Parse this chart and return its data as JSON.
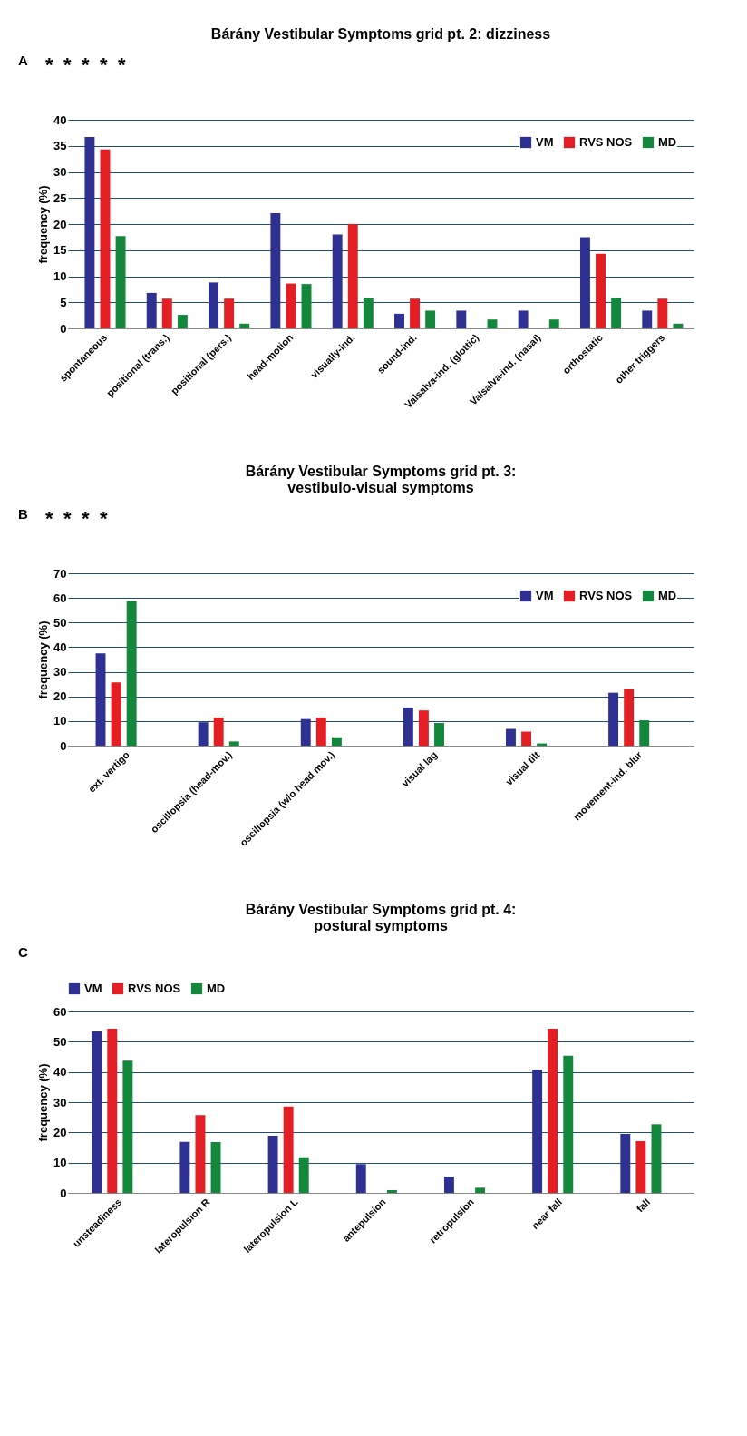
{
  "chart_data": [
    {
      "type": "bar",
      "title": "Bárány Vestibular Symptoms grid pt. 2: dizziness",
      "ylabel": "frequency (%)",
      "categories": [
        "spontaneous",
        "positional (trans.)",
        "positional (pers.)",
        "head-motion",
        "visually-ind.",
        "sound-ind.",
        "Valsalva-ind. (glottic)",
        "Valsalva-ind. (nasal)",
        "orthostatic",
        "other triggers"
      ],
      "series": [
        {
          "name": "VM",
          "color": "#2e3192",
          "values": [
            36.7,
            6.8,
            8.8,
            22.1,
            18.0,
            2.8,
            3.4,
            3.4,
            17.5,
            3.4
          ]
        },
        {
          "name": "RVS NOS",
          "color": "#e31e24",
          "values": [
            34.3,
            5.7,
            5.7,
            8.6,
            20.0,
            5.7,
            0,
            0,
            14.3,
            5.7
          ]
        },
        {
          "name": "MD",
          "color": "#13873c",
          "values": [
            17.7,
            2.6,
            0.9,
            8.5,
            5.9,
            3.4,
            1.7,
            1.7,
            5.9,
            0.9
          ]
        }
      ],
      "ylim": [
        0,
        40
      ],
      "yticks": [
        0,
        5,
        10,
        15,
        20,
        25,
        30,
        35,
        40
      ],
      "grid": "y",
      "legend": "top right",
      "annotations": [
        "A",
        "*",
        "*",
        "*",
        "*",
        "*"
      ]
    },
    {
      "type": "bar",
      "title": "Bárány Vestibular Symptoms grid pt. 3:\nvestibulo-visual symptoms",
      "ylabel": "frequency (%)",
      "categories": [
        "ext. vertigo",
        "oscillopsia (head-mov.)",
        "oscillopsia (w/o head mov.)",
        "visual lag",
        "visual tilt",
        "movement-ind. blur"
      ],
      "series": [
        {
          "name": "VM",
          "color": "#2e3192",
          "values": [
            37.5,
            9.5,
            10.8,
            15.5,
            6.8,
            21.5
          ]
        },
        {
          "name": "RVS NOS",
          "color": "#e31e24",
          "values": [
            25.7,
            11.4,
            11.4,
            14.3,
            5.7,
            22.9
          ]
        },
        {
          "name": "MD",
          "color": "#13873c",
          "values": [
            58.8,
            1.7,
            3.4,
            9.2,
            0.9,
            10.3
          ]
        }
      ],
      "ylim": [
        0,
        70
      ],
      "yticks": [
        0,
        10,
        20,
        30,
        40,
        50,
        60,
        70
      ],
      "grid": "y",
      "legend": "top right",
      "annotations": [
        "B",
        "*",
        "*",
        "*",
        "*"
      ]
    },
    {
      "type": "bar",
      "title": "Bárány Vestibular Symptoms grid pt. 4:\npostural symptoms",
      "ylabel": "frequency (%)",
      "categories": [
        "unsteadiness",
        "lateropulsion R",
        "lateropulsion L",
        "antepulsion",
        "retropulsion",
        "near fall",
        "fall"
      ],
      "series": [
        {
          "name": "VM",
          "color": "#2e3192",
          "values": [
            53.4,
            16.9,
            18.9,
            9.5,
            5.4,
            40.8,
            19.5
          ]
        },
        {
          "name": "RVS NOS",
          "color": "#e31e24",
          "values": [
            54.3,
            25.7,
            28.6,
            0,
            0,
            54.3,
            17.1
          ]
        },
        {
          "name": "MD",
          "color": "#13873c",
          "values": [
            43.7,
            16.8,
            11.8,
            0.9,
            1.7,
            45.4,
            22.7
          ]
        }
      ],
      "ylim": [
        0,
        60
      ],
      "yticks": [
        0,
        10,
        20,
        30,
        40,
        50,
        60
      ],
      "grid": "y",
      "legend": "top",
      "annotations": [
        "C"
      ]
    }
  ]
}
